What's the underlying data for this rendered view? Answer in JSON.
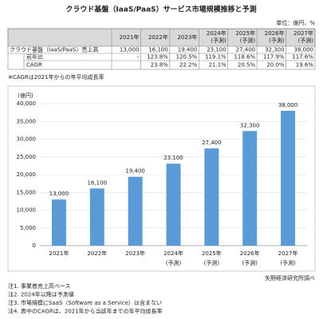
{
  "title": "クラウド基盤（IaaS/PaaS）サービス市場規模推移と予測",
  "unit": "単位：億円、%",
  "table": {
    "header": [
      null,
      "2021年",
      "2022年",
      "2023年",
      [
        "2024年",
        "(予測)"
      ],
      [
        "2025年",
        "(予測)"
      ],
      [
        "2026年",
        "(予測)"
      ],
      [
        "2027年",
        "(予測)"
      ]
    ],
    "rows": [
      {
        "label": "クラウド基盤（IaaS/PaaS）売上高",
        "cells": [
          "13,000",
          "16,100",
          "19,400",
          "23,100",
          "27,400",
          "32,300",
          "38,000"
        ]
      },
      {
        "label": "前年比",
        "cells": [
          "-",
          "123.8%",
          "120.5%",
          "119.1%",
          "118.6%",
          "117.9%",
          "117.6%"
        ]
      },
      {
        "label": "CAGR",
        "cells": [
          null,
          "23.8%",
          "22.2%",
          "21.1%",
          "20.5%",
          "20.0%",
          "19.6%"
        ]
      }
    ]
  },
  "table_note": "※CAGRは2021年からの年平均成長率",
  "chart_data": {
    "type": "bar",
    "y_label": "(億円)",
    "categories": [
      "2021年",
      "2022年",
      "2023年",
      "2024年",
      "2025年",
      "2026年",
      "2027年"
    ],
    "category_sublabels": [
      null,
      null,
      null,
      "(予測)",
      "(予測)",
      "(予測)",
      "(予測)"
    ],
    "values": [
      13000,
      16100,
      19400,
      23100,
      27400,
      32300,
      38000
    ],
    "value_labels": [
      "13,000",
      "16,100",
      "19,400",
      "23,100",
      "27,400",
      "32,300",
      "38,000"
    ],
    "color": "#5b9bd5",
    "ylim": [
      0,
      40000
    ],
    "yticks": [
      0,
      {
        "value": 5000,
        "label": "5,000"
      },
      {
        "value": 10000,
        "label": "10,000"
      },
      {
        "value": 15000,
        "label": "15,000"
      },
      {
        "value": 20000,
        "label": "20,000"
      },
      {
        "value": 25000,
        "label": "25,000"
      },
      {
        "value": 30000,
        "label": "30,000"
      },
      {
        "value": 35000,
        "label": "35,000"
      },
      {
        "value": 40000,
        "label": "40,000"
      }
    ],
    "grid": true
  },
  "source": "矢野経済研究所調べ",
  "notes": [
    "注1. 事業者売上高ベース",
    "注2. 2024年以降は予測値",
    "注3. 市場規模にSaaS（Software as a Service）は含まない",
    "注4. 表中のCAGRは、2021年から当該年までの年平均成長率"
  ]
}
